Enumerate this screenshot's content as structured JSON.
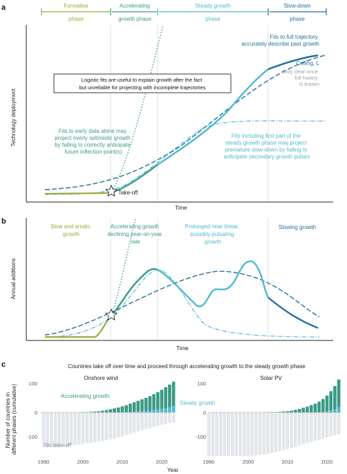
{
  "figure": {
    "panel_a": {
      "label": "a",
      "phases": [
        {
          "name": "Formative",
          "sub": "phase",
          "color": "#9aaa3c"
        },
        {
          "name": "Accelerating",
          "sub": "growth phase",
          "color": "#3a9a85"
        },
        {
          "name": "Steady growth",
          "sub": "phase",
          "color": "#4fb8d0"
        },
        {
          "name": "Slow-down",
          "sub": "phase",
          "color": "#1f6fa0"
        }
      ],
      "ylabel": "Technology deployment",
      "xlabel": "Time",
      "notes": {
        "full_fit": [
          "Fits to full trajectory",
          "accurately describe past growth"
        ],
        "ceiling": "Ceiling, L",
        "only_clear": [
          "Only clear once",
          "full history",
          "is known"
        ],
        "boxed": [
          "Logistic fits are useful to explain growth after the fact",
          "but unreliable for projecting with incomplete trajectories"
        ],
        "early_fit": [
          "Fits to early data alone may",
          "project overly optimistic growth",
          "by failing to correctly anticipate",
          "future inflection point(s)"
        ],
        "partial_fit": [
          "Fits including first part of the",
          "steady growth phase may project",
          "premature slow-down by failing to",
          "anticipate secondary growth pulses"
        ],
        "takeoff": "Take-off"
      }
    },
    "panel_b": {
      "label": "b",
      "ylabel": "Annual additions",
      "xlabel": "Time",
      "notes": {
        "slow": [
          "Slow and erratic",
          "growth"
        ],
        "accel": [
          "Accelerating growth",
          "declining year-on-year",
          "rate"
        ],
        "linear": [
          "Prolonged near-linear,",
          "possibly pulsating",
          "growth"
        ],
        "slowing": "Slowing growth"
      }
    },
    "panel_c": {
      "label": "c",
      "title": "Countries take off over time and proceed through accelerating growth to the steady growth phase",
      "ylabel": [
        "Number of countries in",
        "different phases (cumulative)"
      ],
      "xlabel": "Year",
      "yticks": [
        "100",
        "0",
        "-100"
      ],
      "xticks": [
        "1990",
        "2000",
        "2010",
        "2020"
      ],
      "labels": {
        "accelerating": "Accelerating growth",
        "steady": "Steady growth",
        "notakeoff": "No take-off"
      },
      "colors": {
        "accelerating": "#3a9a85",
        "steady": "#4fb8d0",
        "notakeoff": "#e3e6ea"
      },
      "subplots": [
        {
          "title": "Onshore wind",
          "years": [
            1990,
            1991,
            1992,
            1993,
            1994,
            1995,
            1996,
            1997,
            1998,
            1999,
            2000,
            2001,
            2002,
            2003,
            2004,
            2005,
            2006,
            2007,
            2008,
            2009,
            2010,
            2011,
            2012,
            2013,
            2014,
            2015,
            2016,
            2017,
            2018,
            2019,
            2020,
            2021,
            2022,
            2023
          ],
          "accelerating": [
            0,
            0,
            0,
            0,
            0,
            0,
            0,
            0,
            0,
            0,
            1,
            1,
            2,
            3,
            4,
            6,
            8,
            11,
            14,
            17,
            21,
            25,
            29,
            33,
            37,
            41,
            45,
            50,
            55,
            60,
            66,
            72,
            78,
            84
          ],
          "steady": [
            0,
            0,
            0,
            0,
            0,
            0,
            0,
            0,
            0,
            0,
            0,
            0,
            0,
            0,
            0,
            0,
            0,
            0,
            0,
            0,
            0,
            0,
            1,
            2,
            3,
            4,
            5,
            6,
            8,
            10,
            12,
            15,
            18,
            22
          ],
          "no_takeoff": [
            -120,
            -120,
            -120,
            -120,
            -120,
            -118,
            -116,
            -114,
            -112,
            -110,
            -108,
            -106,
            -104,
            -102,
            -100,
            -98,
            -96,
            -93,
            -90,
            -86,
            -82,
            -78,
            -74,
            -70,
            -66,
            -62,
            -58,
            -54,
            -50,
            -46,
            -43,
            -40,
            -37,
            -35
          ]
        },
        {
          "title": "Solar PV",
          "years": [
            1990,
            1991,
            1992,
            1993,
            1994,
            1995,
            1996,
            1997,
            1998,
            1999,
            2000,
            2001,
            2002,
            2003,
            2004,
            2005,
            2006,
            2007,
            2008,
            2009,
            2010,
            2011,
            2012,
            2013,
            2014,
            2015,
            2016,
            2017,
            2018,
            2019,
            2020,
            2021,
            2022,
            2023
          ],
          "accelerating": [
            0,
            0,
            0,
            0,
            0,
            0,
            0,
            0,
            0,
            0,
            0,
            0,
            0,
            0,
            0,
            0,
            1,
            1,
            2,
            3,
            4,
            6,
            9,
            12,
            16,
            20,
            25,
            30,
            36,
            44,
            54,
            66,
            80,
            96
          ],
          "steady": [
            0,
            0,
            0,
            0,
            0,
            0,
            0,
            0,
            0,
            0,
            0,
            0,
            0,
            0,
            0,
            0,
            0,
            0,
            0,
            0,
            0,
            0,
            0,
            0,
            0,
            0,
            0,
            0,
            1,
            2,
            4,
            7,
            11,
            17
          ],
          "no_takeoff": [
            -150,
            -150,
            -150,
            -150,
            -150,
            -150,
            -150,
            -150,
            -150,
            -150,
            -150,
            -149,
            -148,
            -147,
            -145,
            -142,
            -139,
            -136,
            -133,
            -130,
            -126,
            -122,
            -118,
            -114,
            -110,
            -106,
            -102,
            -98,
            -94,
            -90,
            -86,
            -82,
            -78,
            -74
          ]
        }
      ]
    }
  }
}
